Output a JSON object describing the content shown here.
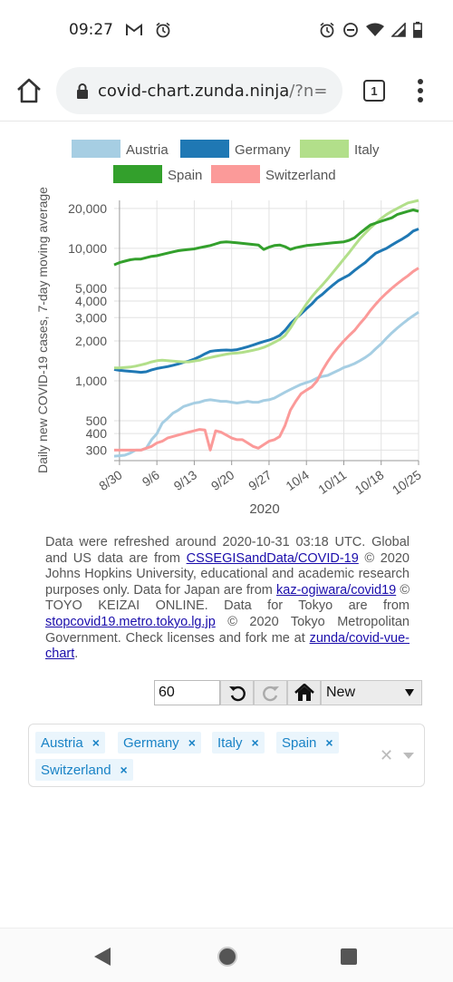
{
  "status": {
    "time": "09:27"
  },
  "browser": {
    "url_host": "covid-chart.zunda.ninja",
    "url_rest": "/?n=",
    "tab_count": "1"
  },
  "chart_data": {
    "type": "line",
    "title": "",
    "xlabel": "2020",
    "ylabel": "Daily new COVID-19 cases, 7-day moving average",
    "yscale": "log",
    "ylim": [
      250,
      23000
    ],
    "x_ticks": [
      "8/30",
      "9/6",
      "9/13",
      "9/20",
      "9/27",
      "10/4",
      "10/11",
      "10/18",
      "10/25"
    ],
    "y_ticks": [
      "20,000",
      "10,000",
      "5,000",
      "4,000",
      "3,000",
      "2,000",
      "1,000",
      "500",
      "400",
      "300"
    ],
    "y_tick_values": [
      20000,
      10000,
      5000,
      4000,
      3000,
      2000,
      1000,
      500,
      400,
      300
    ],
    "legend_position": "top",
    "grid": true,
    "day_offset_start": -1,
    "series": [
      {
        "name": "Austria",
        "color": "#a6cee3",
        "values": [
          270,
          272,
          275,
          285,
          300,
          300,
          310,
          360,
          400,
          480,
          520,
          570,
          600,
          640,
          660,
          680,
          690,
          710,
          720,
          710,
          700,
          700,
          690,
          680,
          690,
          700,
          690,
          690,
          710,
          720,
          740,
          780,
          820,
          860,
          900,
          940,
          970,
          1000,
          1050,
          1080,
          1100,
          1150,
          1200,
          1260,
          1300,
          1350,
          1420,
          1500,
          1600,
          1750,
          1900,
          2100,
          2300,
          2500,
          2700,
          2900,
          3100,
          3300
        ]
      },
      {
        "name": "Germany",
        "color": "#1f78b4",
        "values": [
          1220,
          1200,
          1190,
          1180,
          1170,
          1160,
          1170,
          1210,
          1240,
          1260,
          1280,
          1310,
          1340,
          1380,
          1410,
          1460,
          1520,
          1600,
          1670,
          1690,
          1700,
          1710,
          1700,
          1720,
          1760,
          1810,
          1860,
          1920,
          1980,
          2030,
          2100,
          2200,
          2400,
          2700,
          2950,
          3200,
          3500,
          3800,
          4200,
          4500,
          4900,
          5300,
          5700,
          6000,
          6300,
          6800,
          7300,
          7800,
          8500,
          9200,
          9600,
          10000,
          10600,
          11200,
          11800,
          12500,
          13500,
          14000
        ]
      },
      {
        "name": "Italy",
        "color": "#b2df8a",
        "values": [
          1250,
          1250,
          1260,
          1270,
          1290,
          1320,
          1350,
          1390,
          1420,
          1430,
          1420,
          1410,
          1400,
          1390,
          1390,
          1410,
          1430,
          1470,
          1500,
          1530,
          1560,
          1590,
          1610,
          1620,
          1640,
          1670,
          1700,
          1740,
          1790,
          1860,
          1950,
          2050,
          2200,
          2500,
          2900,
          3300,
          3800,
          4300,
          4800,
          5300,
          5900,
          6600,
          7400,
          8300,
          9300,
          10500,
          11800,
          13000,
          14300,
          15500,
          16800,
          18000,
          19000,
          20000,
          21000,
          22000,
          22500,
          23000
        ]
      },
      {
        "name": "Spain",
        "color": "#33a02c",
        "values": [
          7500,
          7800,
          8000,
          8200,
          8300,
          8300,
          8500,
          8700,
          8800,
          9000,
          9200,
          9400,
          9600,
          9700,
          9800,
          9900,
          10100,
          10300,
          10500,
          10800,
          11100,
          11200,
          11100,
          11000,
          10900,
          10800,
          10700,
          10600,
          9800,
          10200,
          10500,
          10600,
          10300,
          9800,
          10100,
          10300,
          10500,
          10600,
          10700,
          10800,
          10900,
          11000,
          11100,
          11200,
          11500,
          12000,
          13000,
          14000,
          15000,
          15500,
          16000,
          16500,
          17000,
          18000,
          18500,
          19000,
          19500,
          19000
        ]
      },
      {
        "name": "Switzerland",
        "color": "#fb9a99",
        "values": [
          300,
          300,
          300,
          300,
          300,
          300,
          310,
          320,
          340,
          350,
          370,
          380,
          390,
          400,
          410,
          420,
          430,
          425,
          300,
          420,
          410,
          390,
          370,
          360,
          360,
          340,
          320,
          310,
          330,
          350,
          360,
          380,
          460,
          600,
          700,
          800,
          850,
          900,
          1000,
          1200,
          1400,
          1600,
          1800,
          2000,
          2200,
          2400,
          2700,
          3000,
          3400,
          3800,
          4200,
          4600,
          5000,
          5400,
          5800,
          6200,
          6700,
          7100
        ]
      }
    ]
  },
  "attribution": {
    "p1": "Data were refreshed around 2020-10-31 03:18 UTC. Global and US data are from ",
    "link1": "CSSEGISandData/COVID-19",
    "p2": " © 2020 Johns Hopkins University, educational and academic research purposes only. Data for Japan are from ",
    "link2": "kaz-ogiwara/covid19",
    "p3": " © TOYO KEIZAI ONLINE. Data for Tokyo are from ",
    "link3": "stopcovid19.metro.tokyo.lg.jp",
    "p4": " © 2020 Tokyo Metropolitan Government. Check licenses and fork me at ",
    "link4": "zunda/covid-vue-chart",
    "p5": "."
  },
  "controls": {
    "days_value": "60",
    "mode_value": "New"
  },
  "countries": [
    "Austria",
    "Germany",
    "Italy",
    "Spain",
    "Switzerland"
  ],
  "icons": {
    "status_right": [
      "alarm-icon",
      "dnd-icon",
      "wifi-icon",
      "signal-icon",
      "battery-icon"
    ]
  }
}
